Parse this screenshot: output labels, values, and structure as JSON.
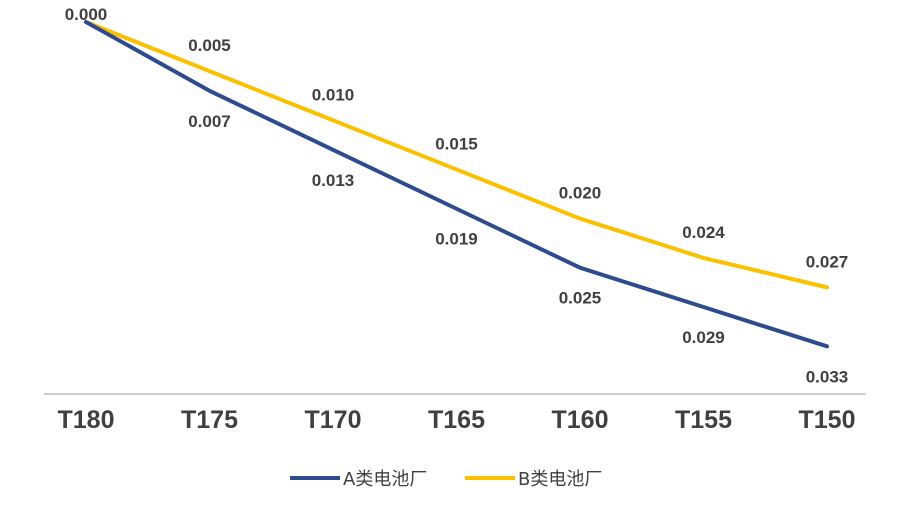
{
  "chart_data": {
    "type": "line",
    "title": "",
    "xlabel": "",
    "ylabel": "",
    "categories": [
      "T180",
      "T175",
      "T170",
      "T165",
      "T160",
      "T155",
      "T150"
    ],
    "ylim": [
      0,
      0.035
    ],
    "y_inverted": true,
    "grid": false,
    "legend_position": "bottom",
    "series": [
      {
        "name": "A类电池厂",
        "color": "#2f4b8f",
        "values": [
          0.0,
          0.007,
          0.013,
          0.019,
          0.025,
          0.029,
          0.033
        ],
        "labels": [
          "0.000",
          "0.007",
          "0.013",
          "0.019",
          "0.025",
          "0.029",
          "0.033"
        ],
        "label_position": "below"
      },
      {
        "name": "B类电池厂",
        "color": "#fbc000",
        "values": [
          0.0,
          0.005,
          0.01,
          0.015,
          0.02,
          0.024,
          0.027
        ],
        "labels": [
          "",
          "0.005",
          "0.010",
          "0.015",
          "0.020",
          "0.024",
          "0.027"
        ],
        "label_position": "above"
      }
    ]
  }
}
